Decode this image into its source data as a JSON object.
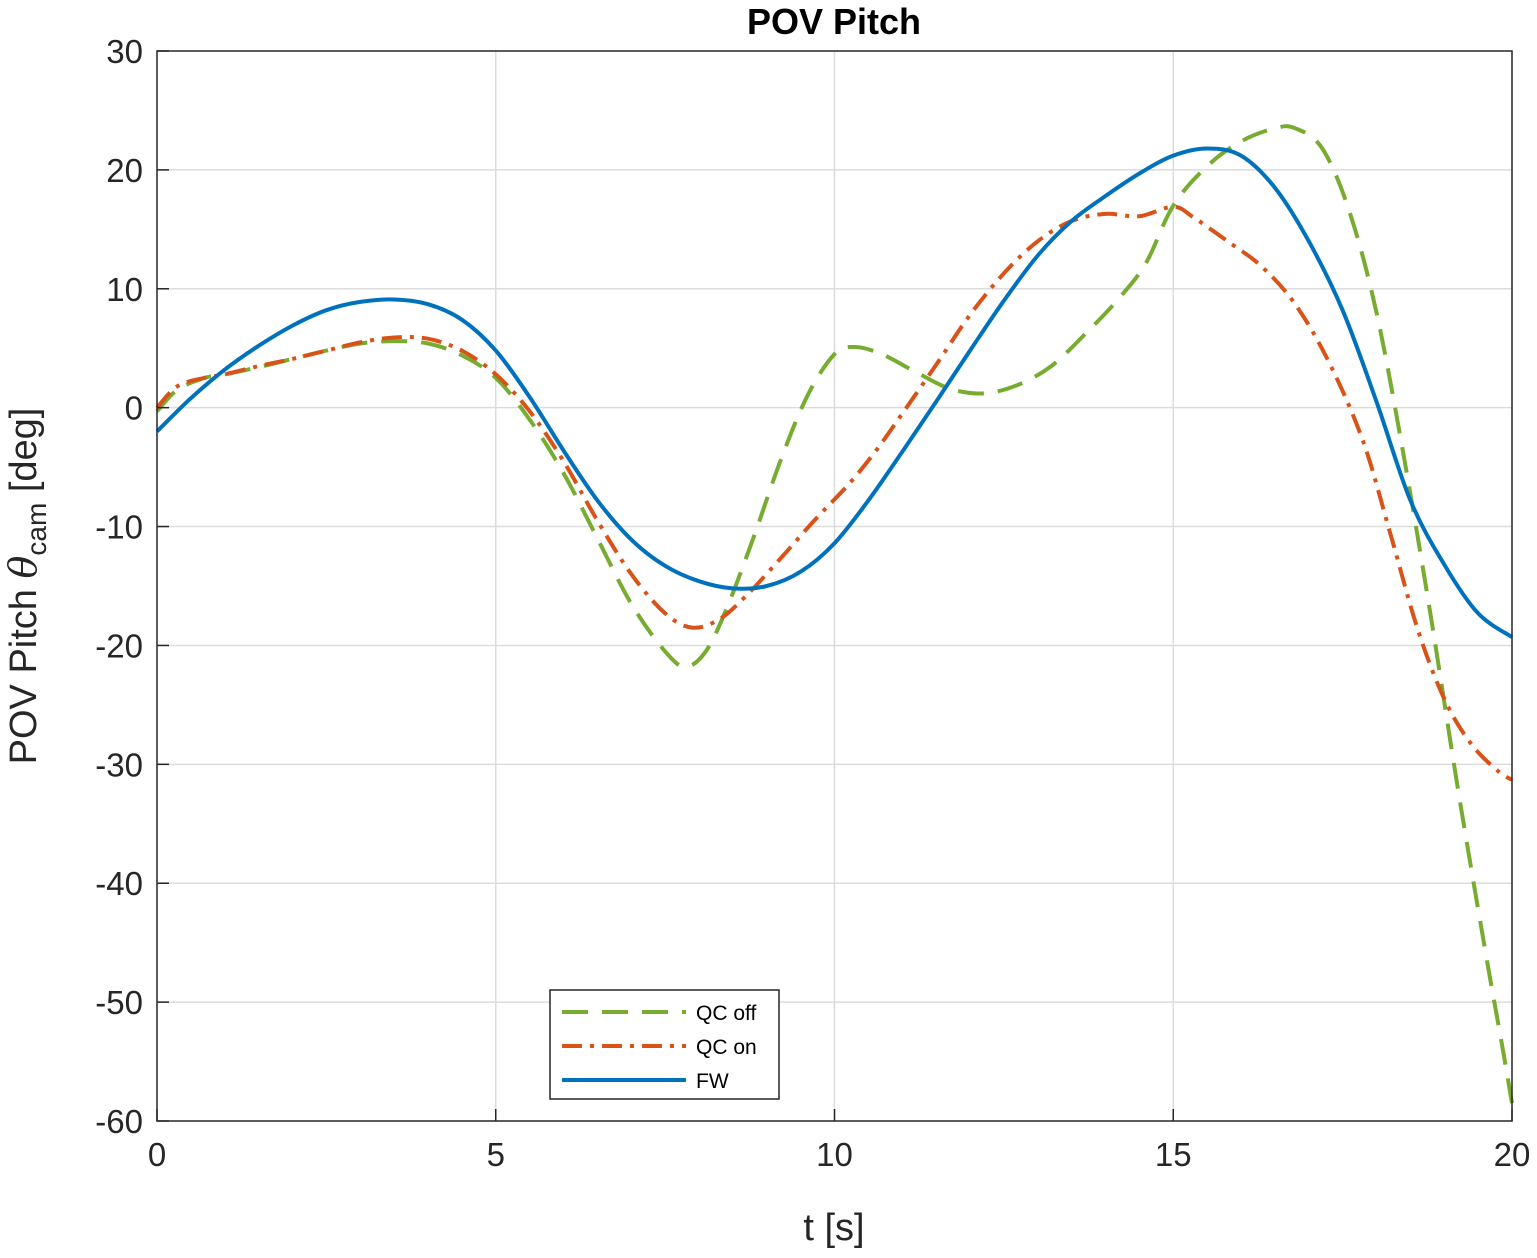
{
  "chart_data": {
    "type": "line",
    "title": "POV Pitch",
    "xlabel": "t [s]",
    "ylabel": {
      "prefix": "POV Pitch ",
      "symbol": "θ",
      "subscript": "cam",
      "suffix": " [deg]"
    },
    "xlim": [
      0,
      20
    ],
    "ylim": [
      -60,
      30
    ],
    "xticks": [
      0,
      5,
      10,
      15,
      20
    ],
    "yticks": [
      30,
      20,
      10,
      0,
      -10,
      -20,
      -30,
      -40,
      -50,
      -60
    ],
    "grid": true,
    "legend_position": "bottom-center",
    "series": [
      {
        "name": "QC off",
        "color": "#77AC30",
        "dash": "dashed",
        "points": [
          [
            0,
            -0.3
          ],
          [
            0.3,
            1.5
          ],
          [
            0.7,
            2.5
          ],
          [
            1,
            2.8
          ],
          [
            1.5,
            3.4
          ],
          [
            2,
            4.1
          ],
          [
            2.5,
            4.8
          ],
          [
            3,
            5.4
          ],
          [
            3.5,
            5.6
          ],
          [
            4,
            5.4
          ],
          [
            4.5,
            4.4
          ],
          [
            5,
            2.5
          ],
          [
            5.5,
            -1
          ],
          [
            6,
            -5.5
          ],
          [
            6.5,
            -11
          ],
          [
            7,
            -16.5
          ],
          [
            7.5,
            -20.5
          ],
          [
            7.8,
            -21.8
          ],
          [
            8.1,
            -20.5
          ],
          [
            8.4,
            -17
          ],
          [
            8.8,
            -11
          ],
          [
            9.2,
            -4.5
          ],
          [
            9.6,
            1
          ],
          [
            10,
            4.5
          ],
          [
            10.3,
            5.1
          ],
          [
            10.7,
            4.5
          ],
          [
            11.2,
            3
          ],
          [
            11.7,
            1.6
          ],
          [
            12.2,
            1.2
          ],
          [
            12.7,
            1.9
          ],
          [
            13.2,
            3.5
          ],
          [
            13.7,
            6.2
          ],
          [
            14.2,
            9.2
          ],
          [
            14.6,
            12.2
          ],
          [
            15,
            17
          ],
          [
            15.5,
            20.3
          ],
          [
            16,
            22.4
          ],
          [
            16.5,
            23.5
          ],
          [
            16.8,
            23.5
          ],
          [
            17.2,
            21.8
          ],
          [
            17.6,
            16.5
          ],
          [
            18,
            8
          ],
          [
            18.4,
            -4
          ],
          [
            18.8,
            -17.5
          ],
          [
            19.2,
            -32
          ],
          [
            19.6,
            -45.5
          ],
          [
            19.85,
            -53.5
          ],
          [
            20,
            -58.5
          ]
        ]
      },
      {
        "name": "QC on",
        "color": "#D95319",
        "dash": "dashdot",
        "points": [
          [
            0,
            0
          ],
          [
            0.3,
            1.8
          ],
          [
            0.7,
            2.5
          ],
          [
            1,
            2.8
          ],
          [
            1.5,
            3.5
          ],
          [
            2,
            4.1
          ],
          [
            2.5,
            4.8
          ],
          [
            3,
            5.5
          ],
          [
            3.5,
            5.9
          ],
          [
            4,
            5.8
          ],
          [
            4.5,
            4.8
          ],
          [
            5,
            2.8
          ],
          [
            5.5,
            -0.3
          ],
          [
            6,
            -4.5
          ],
          [
            6.5,
            -9.5
          ],
          [
            7,
            -14
          ],
          [
            7.5,
            -17.3
          ],
          [
            7.9,
            -18.5
          ],
          [
            8.3,
            -17.8
          ],
          [
            8.7,
            -15.8
          ],
          [
            9.2,
            -12.7
          ],
          [
            9.7,
            -9.5
          ],
          [
            10.2,
            -6.5
          ],
          [
            10.6,
            -3.7
          ],
          [
            11,
            -0.5
          ],
          [
            11.5,
            3.6
          ],
          [
            12,
            7.8
          ],
          [
            12.5,
            11.3
          ],
          [
            13,
            14
          ],
          [
            13.5,
            15.7
          ],
          [
            14,
            16.3
          ],
          [
            14.5,
            16.1
          ],
          [
            15,
            16.9
          ],
          [
            15.3,
            16
          ],
          [
            15.8,
            14
          ],
          [
            16.3,
            11.9
          ],
          [
            16.8,
            8.7
          ],
          [
            17.3,
            3.8
          ],
          [
            17.8,
            -2.8
          ],
          [
            18.2,
            -10.5
          ],
          [
            18.6,
            -18.5
          ],
          [
            19,
            -24.5
          ],
          [
            19.4,
            -28.3
          ],
          [
            19.8,
            -30.6
          ],
          [
            20,
            -31.3
          ]
        ]
      },
      {
        "name": "FW",
        "color": "#0072BD",
        "dash": "solid",
        "points": [
          [
            0,
            -2
          ],
          [
            0.5,
            0.8
          ],
          [
            1,
            3.2
          ],
          [
            1.5,
            5.2
          ],
          [
            2,
            6.9
          ],
          [
            2.5,
            8.2
          ],
          [
            3,
            8.9
          ],
          [
            3.5,
            9.1
          ],
          [
            4,
            8.7
          ],
          [
            4.5,
            7.4
          ],
          [
            5,
            4.8
          ],
          [
            5.5,
            0.9
          ],
          [
            6,
            -3.6
          ],
          [
            6.5,
            -7.8
          ],
          [
            7,
            -11.1
          ],
          [
            7.5,
            -13.3
          ],
          [
            8,
            -14.6
          ],
          [
            8.5,
            -15.2
          ],
          [
            9,
            -15
          ],
          [
            9.5,
            -13.8
          ],
          [
            10,
            -11.4
          ],
          [
            10.5,
            -7.8
          ],
          [
            11,
            -3.7
          ],
          [
            11.5,
            0.5
          ],
          [
            12,
            4.8
          ],
          [
            12.5,
            9
          ],
          [
            13,
            12.8
          ],
          [
            13.5,
            15.7
          ],
          [
            14,
            17.8
          ],
          [
            14.5,
            19.7
          ],
          [
            15,
            21.2
          ],
          [
            15.5,
            21.8
          ],
          [
            16,
            21.2
          ],
          [
            16.5,
            18.5
          ],
          [
            17,
            14
          ],
          [
            17.5,
            8.2
          ],
          [
            18,
            0.5
          ],
          [
            18.5,
            -7.8
          ],
          [
            19,
            -13.2
          ],
          [
            19.5,
            -17.3
          ],
          [
            20,
            -19.3
          ]
        ]
      }
    ]
  }
}
